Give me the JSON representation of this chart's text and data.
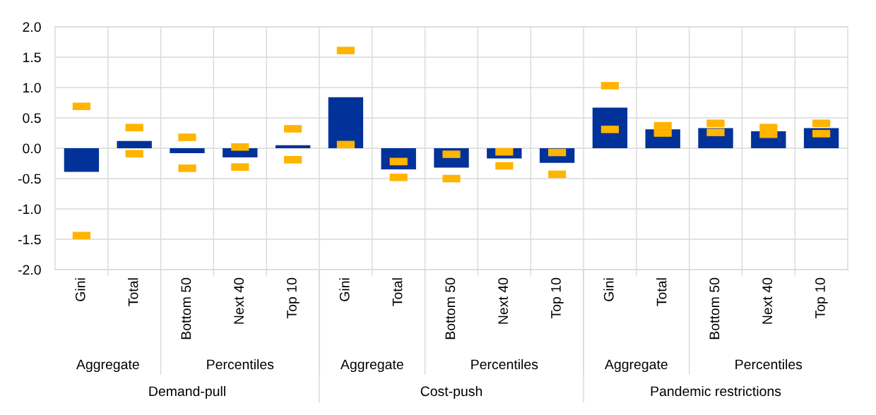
{
  "chart_data": {
    "type": "bar",
    "categories": [
      "Gini",
      "Total",
      "Bottom 50",
      "Next 40",
      "Top 10",
      "Gini",
      "Total",
      "Bottom 50",
      "Next 40",
      "Top 10",
      "Gini",
      "Total",
      "Bottom 50",
      "Next 40",
      "Top 10"
    ],
    "annotations": [
      "Aggregate",
      "Percentiles",
      "Aggregate",
      "Percentiles",
      "Aggregate",
      "Percentiles",
      "Demand-pull",
      "Cost-push",
      "Pandemic restrictions"
    ],
    "series": [
      {
        "type": "bar",
        "color": "#003299",
        "values": [
          -0.39,
          0.12,
          -0.08,
          -0.15,
          0.05,
          0.84,
          -0.35,
          -0.32,
          -0.17,
          -0.24,
          0.67,
          0.31,
          0.33,
          0.28,
          0.33
        ]
      },
      {
        "type": "scatter",
        "color": "#ffb400",
        "values": [
          0.69,
          0.34,
          0.18,
          0.02,
          0.32,
          1.61,
          -0.22,
          -0.1,
          -0.06,
          -0.07,
          1.03,
          0.37,
          0.41,
          0.34,
          0.41
        ]
      },
      {
        "type": "scatter",
        "color": "#ffb400",
        "values": [
          -1.44,
          -0.09,
          -0.33,
          -0.31,
          -0.19,
          0.06,
          -0.48,
          -0.5,
          -0.29,
          -0.43,
          0.31,
          0.25,
          0.26,
          0.23,
          0.24
        ]
      }
    ],
    "ylim": [
      -2.0,
      2.0
    ],
    "yticks": [
      {
        "value": -2.0,
        "label": "-2.0"
      },
      {
        "value": -1.5,
        "label": "-1.5"
      },
      {
        "value": -1.0,
        "label": "-1.0"
      },
      {
        "value": -0.5,
        "label": "-0.5"
      },
      {
        "value": 0.0,
        "label": "0.0"
      },
      {
        "value": 0.5,
        "label": "0.5"
      },
      {
        "value": 1.0,
        "label": "1.0"
      },
      {
        "value": 1.5,
        "label": "1.5"
      },
      {
        "value": 2.0,
        "label": "2.0"
      }
    ],
    "grid": true
  }
}
